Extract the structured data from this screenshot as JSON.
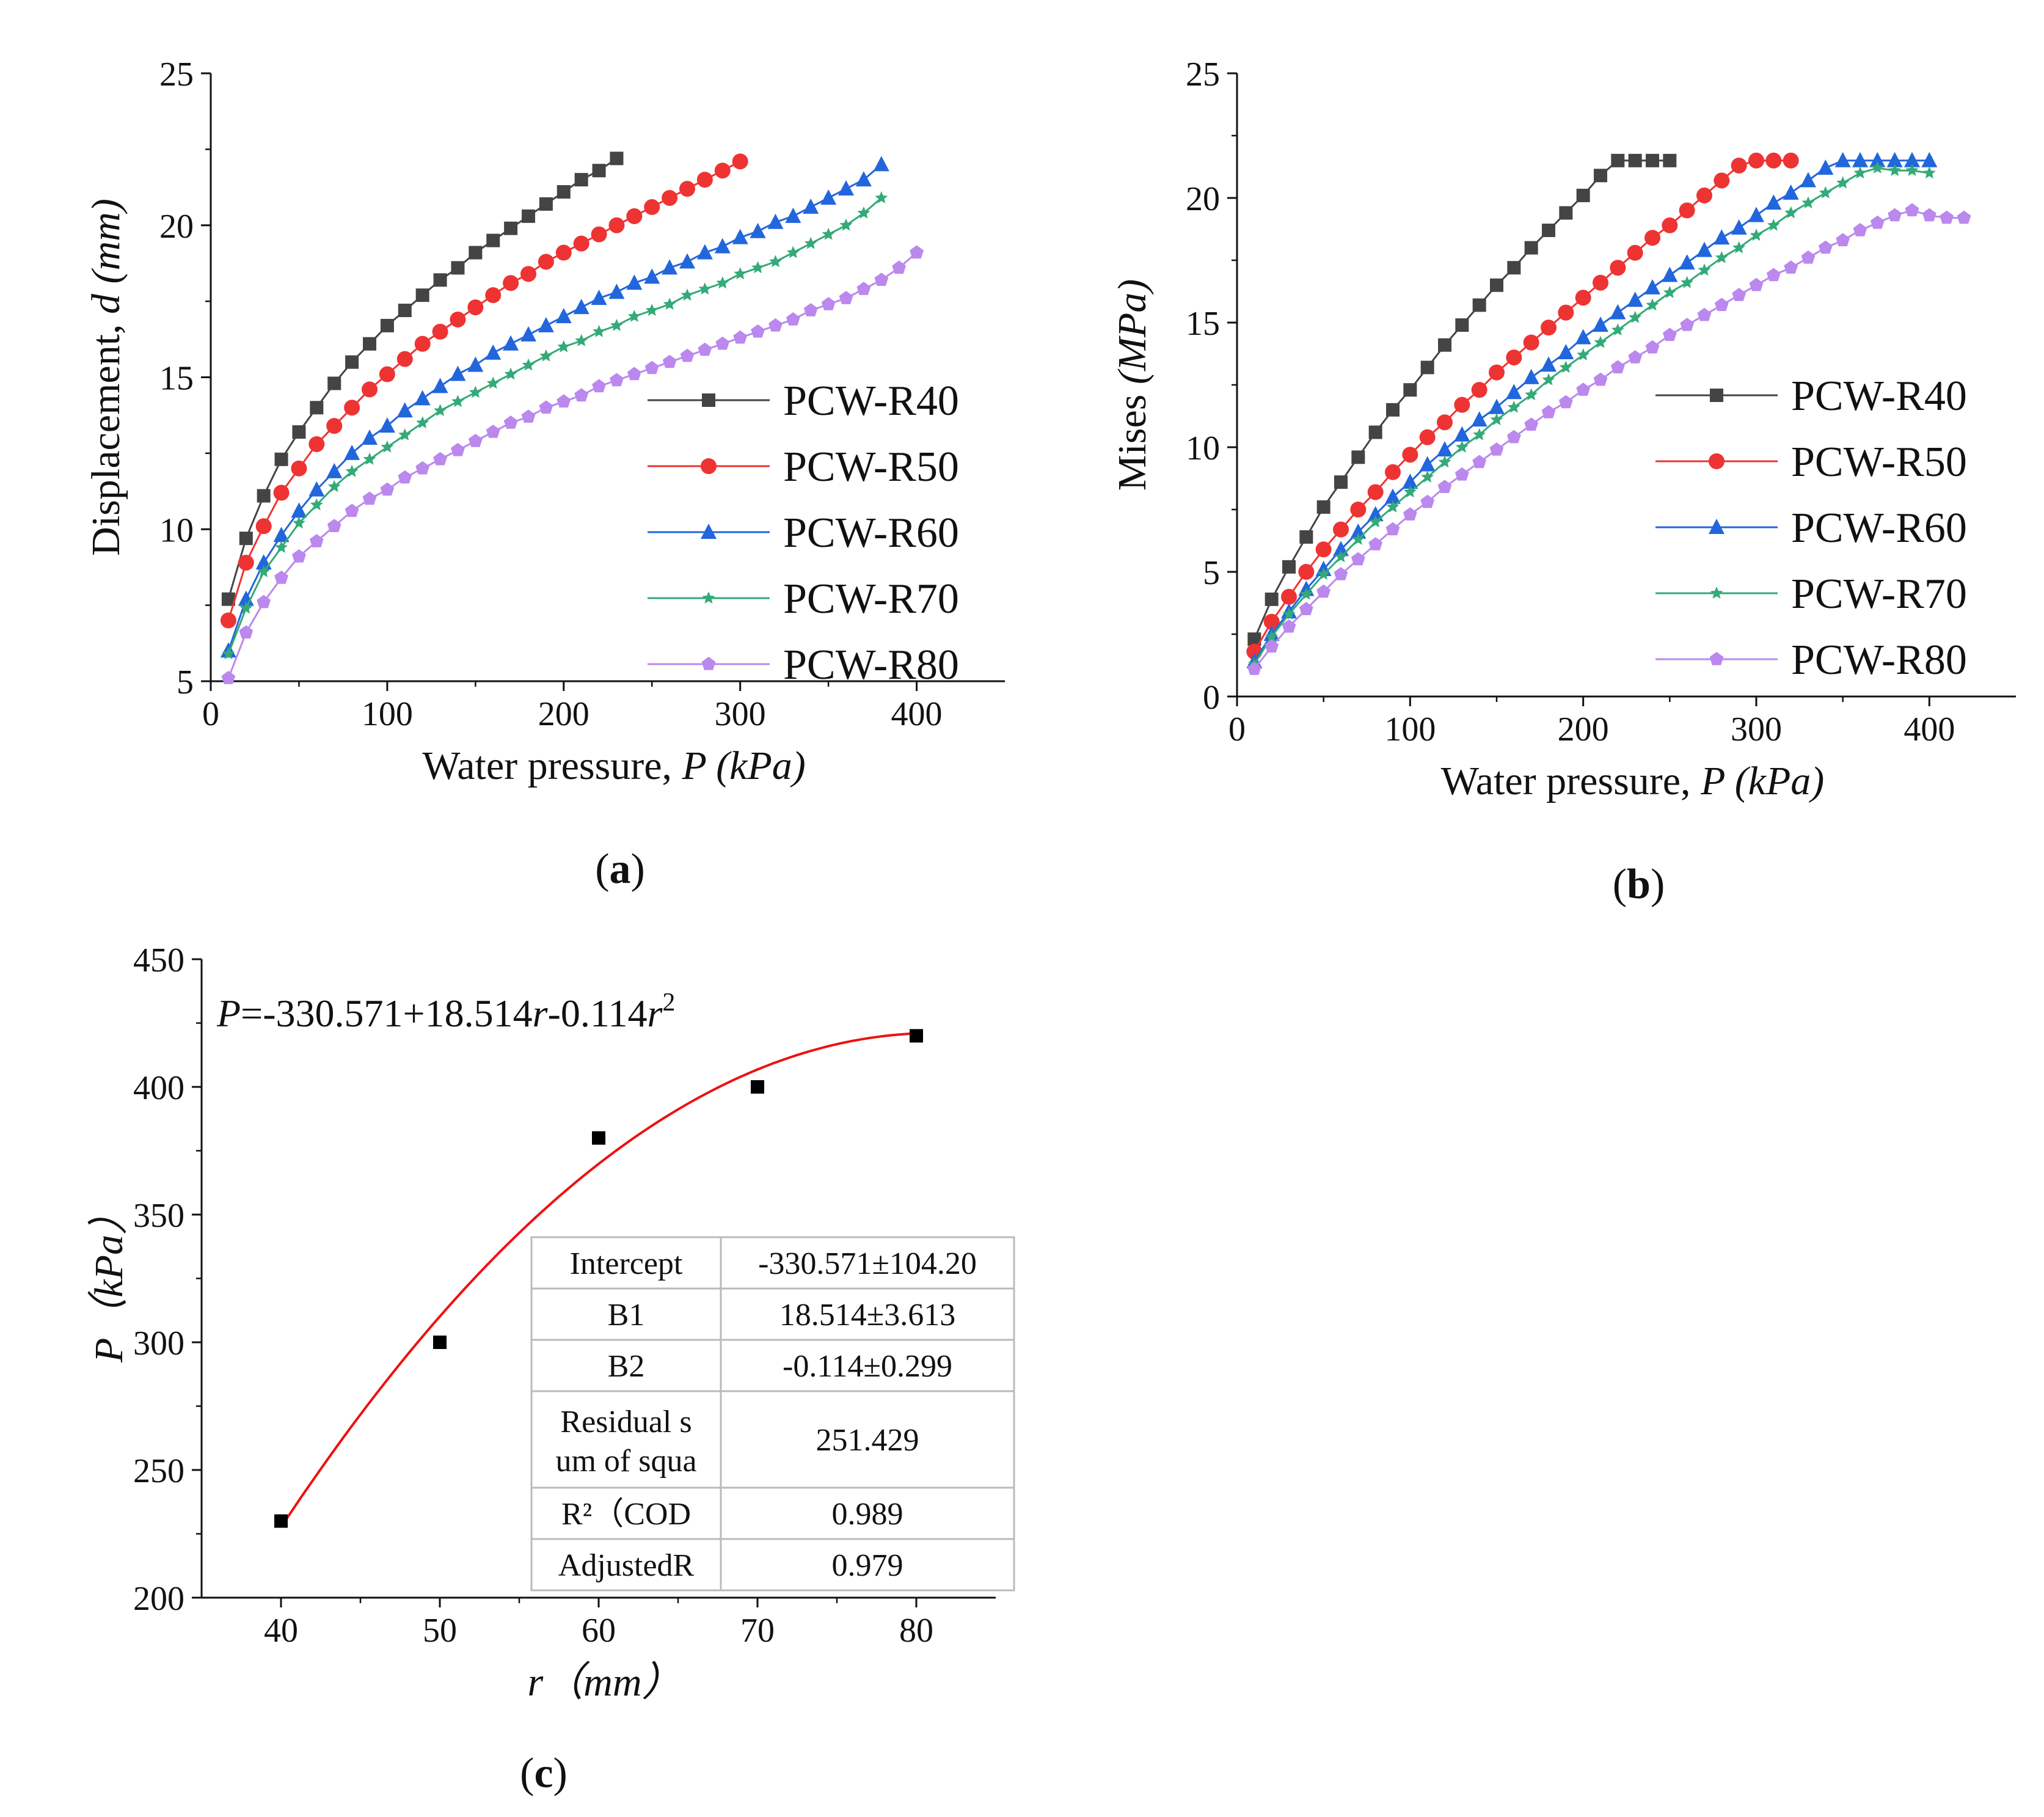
{
  "figure": {
    "panels": [
      "a",
      "b",
      "c"
    ]
  },
  "chart_data": [
    {
      "id": "a",
      "type": "line",
      "caption": "a",
      "xlabel_prefix": "Water pressure, ",
      "xlabel_var": "P",
      "xlabel_unit": " (kPa)",
      "ylabel_prefix": "Displacement, ",
      "ylabel_var": "d",
      "ylabel_unit": " (mm)",
      "xlim": [
        0,
        450
      ],
      "ylim": [
        5,
        25
      ],
      "xticks": [
        0,
        100,
        200,
        300,
        400
      ],
      "yticks": [
        5,
        10,
        15,
        20,
        25
      ],
      "legend_position": "right",
      "series": [
        {
          "name": "PCW-R40",
          "color": "#444444",
          "marker": "square",
          "x": [
            10,
            20,
            30,
            40,
            50,
            60,
            70,
            80,
            90,
            100,
            110,
            120,
            130,
            140,
            150,
            160,
            170,
            180,
            190,
            200,
            210,
            220,
            230
          ],
          "y": [
            7.7,
            9.7,
            11.1,
            12.3,
            13.2,
            14.0,
            14.8,
            15.5,
            16.1,
            16.7,
            17.2,
            17.7,
            18.2,
            18.6,
            19.1,
            19.5,
            19.9,
            20.3,
            20.7,
            21.1,
            21.5,
            21.8,
            22.2
          ]
        },
        {
          "name": "PCW-R50",
          "color": "#ee3333",
          "marker": "circle",
          "x": [
            10,
            20,
            30,
            40,
            50,
            60,
            70,
            80,
            90,
            100,
            110,
            120,
            130,
            140,
            150,
            160,
            170,
            180,
            190,
            200,
            210,
            220,
            230,
            240,
            250,
            260,
            270,
            280,
            290,
            300
          ],
          "y": [
            7.0,
            8.9,
            10.1,
            11.2,
            12.0,
            12.8,
            13.4,
            14.0,
            14.6,
            15.1,
            15.6,
            16.1,
            16.5,
            16.9,
            17.3,
            17.7,
            18.1,
            18.4,
            18.8,
            19.1,
            19.4,
            19.7,
            20.0,
            20.3,
            20.6,
            20.9,
            21.2,
            21.5,
            21.8,
            22.1
          ]
        },
        {
          "name": "PCW-R60",
          "color": "#2266dd",
          "marker": "triangle",
          "x": [
            10,
            20,
            30,
            40,
            50,
            60,
            70,
            80,
            90,
            100,
            110,
            120,
            130,
            140,
            150,
            160,
            170,
            180,
            190,
            200,
            210,
            220,
            230,
            240,
            250,
            260,
            270,
            280,
            290,
            300,
            310,
            320,
            330,
            340,
            350,
            360,
            370,
            380
          ],
          "y": [
            6.0,
            7.7,
            8.9,
            9.8,
            10.6,
            11.3,
            11.9,
            12.5,
            13.0,
            13.4,
            13.9,
            14.3,
            14.7,
            15.1,
            15.4,
            15.8,
            16.1,
            16.4,
            16.7,
            17.0,
            17.3,
            17.6,
            17.8,
            18.1,
            18.3,
            18.6,
            18.8,
            19.1,
            19.3,
            19.6,
            19.8,
            20.1,
            20.3,
            20.6,
            20.9,
            21.2,
            21.5,
            22.0
          ]
        },
        {
          "name": "PCW-R70",
          "color": "#33aa77",
          "marker": "star",
          "x": [
            10,
            20,
            30,
            40,
            50,
            60,
            70,
            80,
            90,
            100,
            110,
            120,
            130,
            140,
            150,
            160,
            170,
            180,
            190,
            200,
            210,
            220,
            230,
            240,
            250,
            260,
            270,
            280,
            290,
            300,
            310,
            320,
            330,
            340,
            350,
            360,
            370,
            380
          ],
          "y": [
            5.9,
            7.4,
            8.6,
            9.4,
            10.2,
            10.8,
            11.4,
            11.9,
            12.3,
            12.7,
            13.1,
            13.5,
            13.9,
            14.2,
            14.5,
            14.8,
            15.1,
            15.4,
            15.7,
            16.0,
            16.2,
            16.5,
            16.7,
            17.0,
            17.2,
            17.4,
            17.7,
            17.9,
            18.1,
            18.4,
            18.6,
            18.8,
            19.1,
            19.4,
            19.7,
            20.0,
            20.4,
            20.9
          ]
        },
        {
          "name": "PCW-R80",
          "color": "#bb88ee",
          "marker": "pentagon",
          "x": [
            10,
            20,
            30,
            40,
            50,
            60,
            70,
            80,
            90,
            100,
            110,
            120,
            130,
            140,
            150,
            160,
            170,
            180,
            190,
            200,
            210,
            220,
            230,
            240,
            250,
            260,
            270,
            280,
            290,
            300,
            310,
            320,
            330,
            340,
            350,
            360,
            370,
            380,
            390,
            400
          ],
          "y": [
            5.1,
            6.6,
            7.6,
            8.4,
            9.1,
            9.6,
            10.1,
            10.6,
            11.0,
            11.3,
            11.7,
            12.0,
            12.3,
            12.6,
            12.9,
            13.2,
            13.5,
            13.7,
            14.0,
            14.2,
            14.4,
            14.7,
            14.9,
            15.1,
            15.3,
            15.5,
            15.7,
            15.9,
            16.1,
            16.3,
            16.5,
            16.7,
            16.9,
            17.2,
            17.4,
            17.6,
            17.9,
            18.2,
            18.6,
            19.1
          ]
        }
      ]
    },
    {
      "id": "b",
      "type": "line",
      "caption": "b",
      "xlabel_prefix": "Water pressure, ",
      "xlabel_var": "P",
      "xlabel_unit": " (kPa)",
      "ylabel_prefix": "Mises ",
      "ylabel_var": "",
      "ylabel_unit": "(MPa)",
      "xlim": [
        0,
        450
      ],
      "ylim": [
        0,
        25
      ],
      "xticks": [
        0,
        100,
        200,
        300,
        400
      ],
      "yticks": [
        0,
        5,
        10,
        15,
        20,
        25
      ],
      "legend_position": "right",
      "series": [
        {
          "name": "PCW-R40",
          "color": "#444444",
          "marker": "square",
          "x": [
            10,
            20,
            30,
            40,
            50,
            60,
            70,
            80,
            90,
            100,
            110,
            120,
            130,
            140,
            150,
            160,
            170,
            180,
            190,
            200,
            210,
            220,
            230,
            240,
            250
          ],
          "y": [
            2.3,
            3.9,
            5.2,
            6.4,
            7.6,
            8.6,
            9.6,
            10.6,
            11.5,
            12.3,
            13.2,
            14.1,
            14.9,
            15.7,
            16.5,
            17.2,
            18.0,
            18.7,
            19.4,
            20.1,
            20.9,
            21.5,
            21.5,
            21.5,
            21.5
          ]
        },
        {
          "name": "PCW-R50",
          "color": "#ee3333",
          "marker": "circle",
          "x": [
            10,
            20,
            30,
            40,
            50,
            60,
            70,
            80,
            90,
            100,
            110,
            120,
            130,
            140,
            150,
            160,
            170,
            180,
            190,
            200,
            210,
            220,
            230,
            240,
            250,
            260,
            270,
            280,
            290,
            300,
            310,
            320
          ],
          "y": [
            1.8,
            3.0,
            4.0,
            5.0,
            5.9,
            6.7,
            7.5,
            8.2,
            9.0,
            9.7,
            10.4,
            11.0,
            11.7,
            12.3,
            13.0,
            13.6,
            14.2,
            14.8,
            15.4,
            16.0,
            16.6,
            17.2,
            17.8,
            18.4,
            18.9,
            19.5,
            20.1,
            20.7,
            21.3,
            21.5,
            21.5,
            21.5
          ]
        },
        {
          "name": "PCW-R60",
          "color": "#2266dd",
          "marker": "triangle",
          "x": [
            10,
            20,
            30,
            40,
            50,
            60,
            70,
            80,
            90,
            100,
            110,
            120,
            130,
            140,
            150,
            160,
            170,
            180,
            190,
            200,
            210,
            220,
            230,
            240,
            250,
            260,
            270,
            280,
            290,
            300,
            310,
            320,
            330,
            340,
            350,
            360,
            370,
            380,
            390,
            400
          ],
          "y": [
            1.4,
            2.5,
            3.4,
            4.3,
            5.1,
            5.9,
            6.6,
            7.3,
            8.0,
            8.6,
            9.3,
            9.9,
            10.5,
            11.1,
            11.6,
            12.2,
            12.8,
            13.3,
            13.8,
            14.4,
            14.9,
            15.4,
            15.9,
            16.4,
            16.9,
            17.4,
            17.9,
            18.4,
            18.8,
            19.3,
            19.8,
            20.2,
            20.7,
            21.2,
            21.5,
            21.5,
            21.5,
            21.5,
            21.5,
            21.5
          ]
        },
        {
          "name": "PCW-R70",
          "color": "#33aa77",
          "marker": "star",
          "x": [
            10,
            20,
            30,
            40,
            50,
            60,
            70,
            80,
            90,
            100,
            110,
            120,
            130,
            140,
            150,
            160,
            170,
            180,
            190,
            200,
            210,
            220,
            230,
            240,
            250,
            260,
            270,
            280,
            290,
            300,
            310,
            320,
            330,
            340,
            350,
            360,
            370,
            380,
            390,
            400
          ],
          "y": [
            1.3,
            2.4,
            3.3,
            4.1,
            4.9,
            5.6,
            6.3,
            7.0,
            7.6,
            8.2,
            8.8,
            9.4,
            10.0,
            10.5,
            11.1,
            11.6,
            12.1,
            12.7,
            13.2,
            13.7,
            14.2,
            14.7,
            15.2,
            15.7,
            16.2,
            16.6,
            17.1,
            17.6,
            18.0,
            18.5,
            18.9,
            19.4,
            19.8,
            20.2,
            20.6,
            21.0,
            21.2,
            21.1,
            21.1,
            21.0
          ]
        },
        {
          "name": "PCW-R80",
          "color": "#bb88ee",
          "marker": "pentagon",
          "x": [
            10,
            20,
            30,
            40,
            50,
            60,
            70,
            80,
            90,
            100,
            110,
            120,
            130,
            140,
            150,
            160,
            170,
            180,
            190,
            200,
            210,
            220,
            230,
            240,
            250,
            260,
            270,
            280,
            290,
            300,
            310,
            320,
            330,
            340,
            350,
            360,
            370,
            380,
            390,
            400,
            410,
            420
          ],
          "y": [
            1.1,
            2.0,
            2.8,
            3.5,
            4.2,
            4.9,
            5.5,
            6.1,
            6.7,
            7.3,
            7.8,
            8.4,
            8.9,
            9.4,
            9.9,
            10.4,
            10.9,
            11.4,
            11.8,
            12.3,
            12.7,
            13.2,
            13.6,
            14.0,
            14.5,
            14.9,
            15.3,
            15.7,
            16.1,
            16.5,
            16.9,
            17.2,
            17.6,
            18.0,
            18.3,
            18.7,
            19.0,
            19.3,
            19.5,
            19.3,
            19.2,
            19.2
          ]
        }
      ]
    },
    {
      "id": "c",
      "type": "scatter",
      "caption": "c",
      "xlabel_var": "r",
      "xlabel_unit": "（mm）",
      "ylabel_var": "P",
      "ylabel_unit": "（kPa）",
      "xlim": [
        35,
        85
      ],
      "ylim": [
        200,
        450
      ],
      "xticks": [
        40,
        50,
        60,
        70,
        80
      ],
      "yticks": [
        200,
        250,
        300,
        350,
        400,
        450
      ],
      "points": {
        "x": [
          40,
          50,
          60,
          70,
          80
        ],
        "y": [
          230,
          300,
          380,
          400,
          420
        ],
        "color": "#000000"
      },
      "fit": {
        "color": "#ee1111",
        "coefficients": [
          -330.571,
          18.514,
          -0.114
        ],
        "x_range": [
          40,
          80
        ],
        "equation": [
          "P",
          "=-330.571+18.514",
          "r",
          "-0.114",
          "r",
          "2"
        ]
      },
      "table": [
        [
          "Intercept",
          "-330.571±104.20"
        ],
        [
          "B1",
          "18.514±3.613"
        ],
        [
          "B2",
          "-0.114±0.299"
        ],
        [
          "Residual s\num of squa",
          "251.429"
        ],
        [
          "R²（COD",
          "0.989"
        ],
        [
          "AdjustedR",
          "0.979"
        ]
      ]
    }
  ]
}
